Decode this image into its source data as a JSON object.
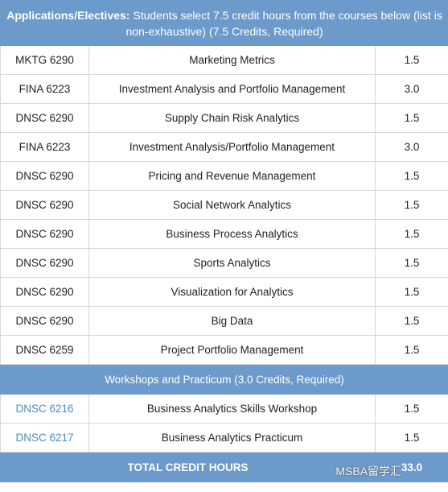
{
  "header": {
    "label": "Applications/Electives:",
    "text": "Students select 7.5 credit hours from the courses below (list is non-exhaustive) (7.5 Credits, Required)"
  },
  "courses": [
    [
      "MKTG 6290",
      "Marketing Metrics",
      "1.5"
    ],
    [
      "FINA 6223",
      "Investment Analysis and Portfolio Management",
      "3.0"
    ],
    [
      "DNSC 6290",
      "Supply Chain Risk Analytics",
      "1.5"
    ],
    [
      "FINA 6223",
      "Investment Analysis/Portfolio Management",
      "3.0"
    ],
    [
      "DNSC 6290",
      "Pricing and Revenue Management",
      "1.5"
    ],
    [
      "DNSC 6290",
      "Social Network Analytics",
      "1.5"
    ],
    [
      "DNSC 6290",
      "Business Process Analytics",
      "1.5"
    ],
    [
      "DNSC 6290",
      "Sports Analytics",
      "1.5"
    ],
    [
      "DNSC 6290",
      "Visualization for Analytics",
      "1.5"
    ],
    [
      "DNSC 6290",
      "Big Data",
      "1.5"
    ],
    [
      "DNSC 6259",
      "Project Portfolio Management",
      "1.5"
    ]
  ],
  "section": "Workshops and Practicum (3.0 Credits, Required)",
  "workshops": [
    [
      "DNSC 6216",
      "Business Analytics Skills Workshop",
      "1.5"
    ],
    [
      "DNSC 6217",
      "Business Analytics Practicum",
      "1.5"
    ]
  ],
  "total": {
    "label": "TOTAL CREDIT HOURS",
    "value": "33.0"
  },
  "watermark": "MSBA留学汇"
}
